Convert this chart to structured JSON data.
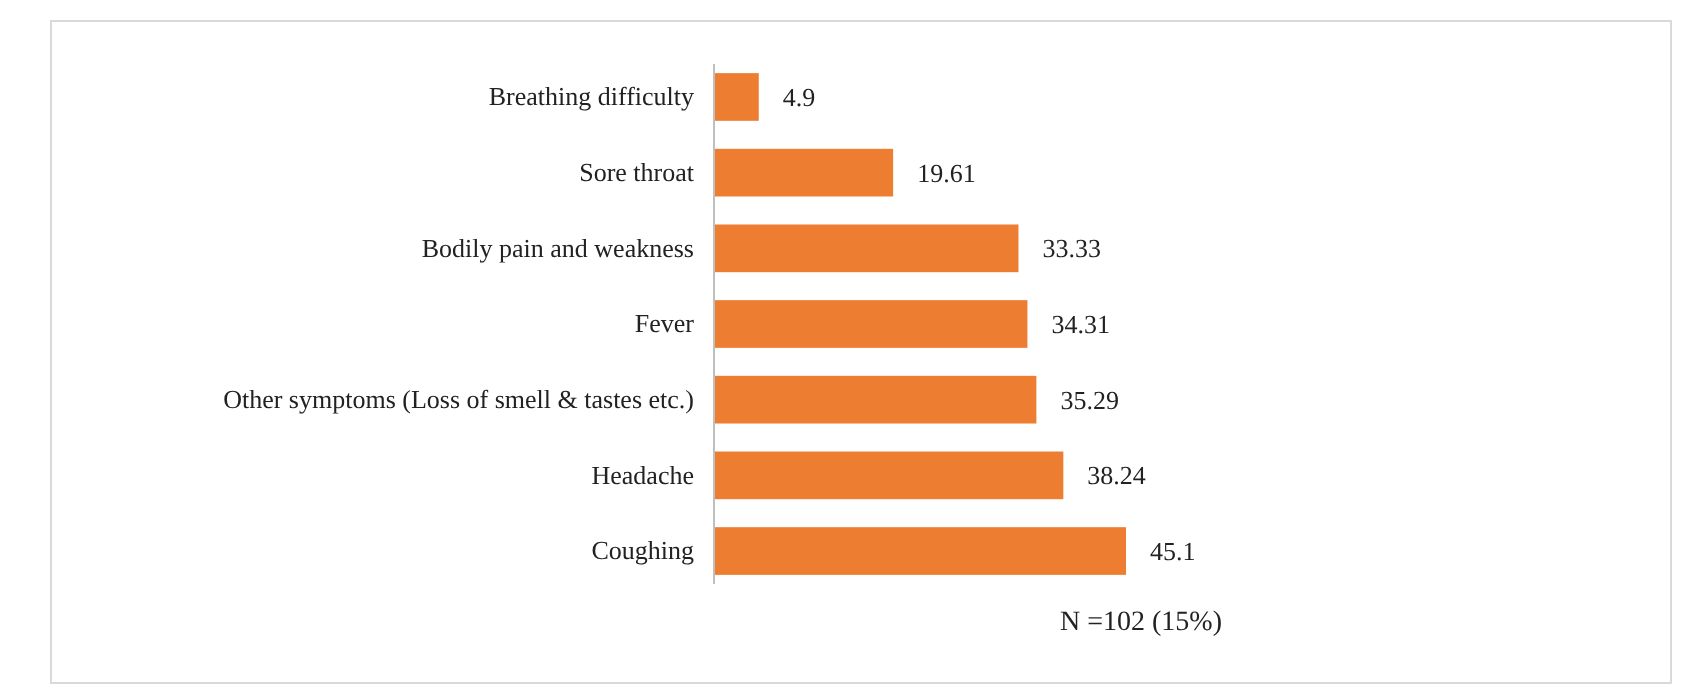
{
  "chart_data": {
    "type": "bar",
    "orientation": "horizontal",
    "categories": [
      "Breathing difficulty",
      "Sore throat",
      "Bodily pain and weakness",
      "Fever",
      "Other symptoms (Loss of smell & tastes etc.)",
      "Headache",
      "Coughing"
    ],
    "values": [
      4.9,
      19.61,
      33.33,
      34.31,
      35.29,
      38.24,
      45.1
    ],
    "color": "#ed7d31",
    "data_labels": true,
    "relative": false,
    "annotations": [
      "N =102 (15%)"
    ]
  }
}
